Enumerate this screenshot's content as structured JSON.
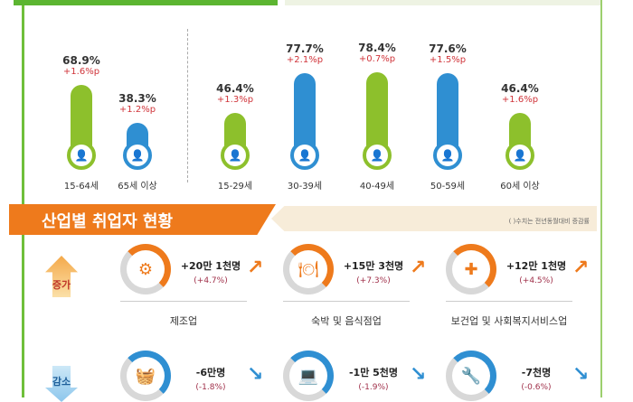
{
  "chart_data": {
    "type": "bar",
    "title": "",
    "categories": [
      "15-64세",
      "65세 이상",
      "15-29세",
      "30-39세",
      "40-49세",
      "50-59세",
      "60세 이상"
    ],
    "values": [
      68.9,
      38.3,
      46.4,
      77.7,
      78.4,
      77.6,
      46.4
    ],
    "value_labels": [
      "68.9%",
      "38.3%",
      "46.4%",
      "77.7%",
      "78.4%",
      "77.6%",
      "46.4%"
    ],
    "changes": [
      "+1.6%p",
      "+1.2%p",
      "+1.3%p",
      "+2.1%p",
      "+0.7%p",
      "+1.5%p",
      "+1.6%p"
    ],
    "colors": [
      "#8dc02c",
      "#2f8fd2",
      "#8dc02c",
      "#2f8fd2",
      "#8dc02c",
      "#2f8fd2",
      "#8dc02c"
    ],
    "ylim": [
      0,
      100
    ]
  },
  "section": {
    "title": "산업별 취업자 현황",
    "note": "( )수치는 전년동월대비 증감률"
  },
  "increase": {
    "label": "증가",
    "items": [
      {
        "amount": "+20만 1천명",
        "pct": "(+4.7%)",
        "industry": "제조업",
        "icon": "⚙"
      },
      {
        "amount": "+15만 3천명",
        "pct": "(+7.3%)",
        "industry": "숙박 및 음식점업",
        "icon": "🍽"
      },
      {
        "amount": "+12만 1천명",
        "pct": "(+4.5%)",
        "industry": "보건업 및 사회복지서비스업",
        "icon": "✚"
      }
    ]
  },
  "decrease": {
    "label": "감소",
    "items": [
      {
        "amount": "-6만명",
        "pct": "(-1.8%)",
        "icon": "🧺"
      },
      {
        "amount": "-1만 5천명",
        "pct": "(-1.9%)",
        "icon": "💻"
      },
      {
        "amount": "-7천명",
        "pct": "(-0.6%)",
        "icon": "🔧"
      }
    ]
  },
  "colors": {
    "green": "#8dc02c",
    "blue": "#2f8fd2",
    "orange": "#ee7a1c"
  }
}
